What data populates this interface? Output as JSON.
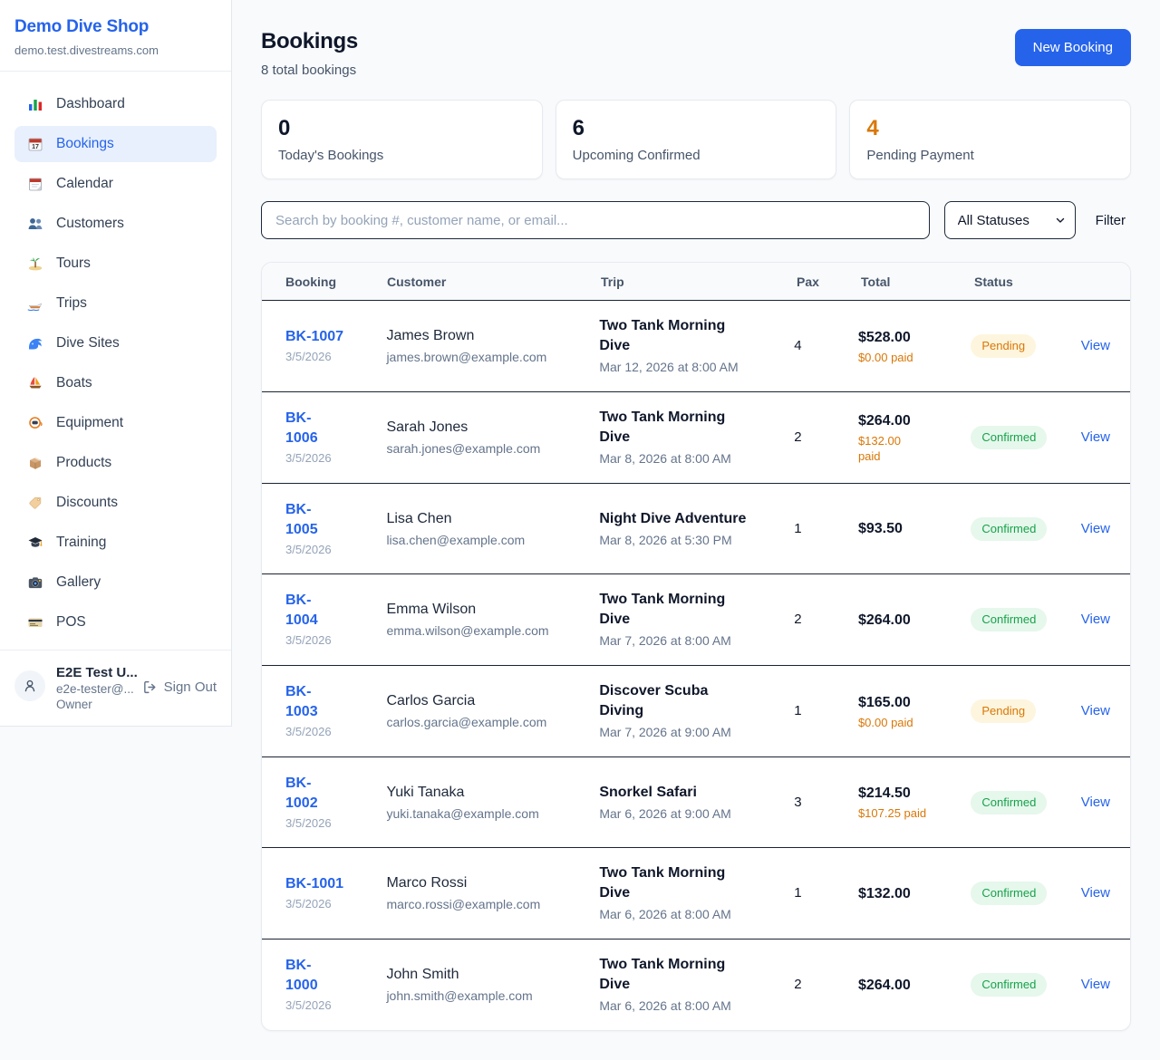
{
  "sidebar": {
    "brand": "Demo Dive Shop",
    "domain": "demo.test.divestreams.com",
    "items": [
      {
        "label": "Dashboard",
        "icon": "bar-chart-icon",
        "active": false
      },
      {
        "label": "Bookings",
        "icon": "calendar-date-icon",
        "active": true
      },
      {
        "label": "Calendar",
        "icon": "calendar-icon",
        "active": false
      },
      {
        "label": "Customers",
        "icon": "people-icon",
        "active": false
      },
      {
        "label": "Tours",
        "icon": "island-icon",
        "active": false
      },
      {
        "label": "Trips",
        "icon": "speedboat-icon",
        "active": false
      },
      {
        "label": "Dive Sites",
        "icon": "wave-icon",
        "active": false
      },
      {
        "label": "Boats",
        "icon": "sailboat-icon",
        "active": false
      },
      {
        "label": "Equipment",
        "icon": "dive-mask-icon",
        "active": false
      },
      {
        "label": "Products",
        "icon": "package-icon",
        "active": false
      },
      {
        "label": "Discounts",
        "icon": "tag-icon",
        "active": false
      },
      {
        "label": "Training",
        "icon": "grad-cap-icon",
        "active": false
      },
      {
        "label": "Gallery",
        "icon": "camera-icon",
        "active": false
      },
      {
        "label": "POS",
        "icon": "credit-card-icon",
        "active": false
      }
    ],
    "user": {
      "name": "E2E Test U...",
      "email": "e2e-tester@...",
      "role": "Owner",
      "sign_out": "Sign Out"
    }
  },
  "header": {
    "title": "Bookings",
    "subtitle": "8 total bookings",
    "new_booking_label": "New Booking"
  },
  "stats": [
    {
      "value": "0",
      "label": "Today's Bookings",
      "highlight": false
    },
    {
      "value": "6",
      "label": "Upcoming Confirmed",
      "highlight": false
    },
    {
      "value": "4",
      "label": "Pending Payment",
      "highlight": true
    }
  ],
  "filters": {
    "search_placeholder": "Search by booking #, customer name, or email...",
    "status_selected": "All Statuses",
    "filter_label": "Filter"
  },
  "table": {
    "columns": [
      "Booking",
      "Customer",
      "Trip",
      "Pax",
      "Total",
      "Status"
    ],
    "view_label": "View",
    "rows": [
      {
        "id": "BK-1007",
        "id_wrapped": false,
        "date": "3/5/2026",
        "customer_name": "James Brown",
        "customer_email": "james.brown@example.com",
        "trip_name": "Two Tank Morning Dive",
        "trip_datetime": "Mar 12, 2026 at 8:00 AM",
        "pax": "4",
        "total": "$528.00",
        "paid": "$0.00 paid",
        "paid_wrapped": false,
        "status": "Pending"
      },
      {
        "id": "BK-1006",
        "id_wrapped": true,
        "date": "3/5/2026",
        "customer_name": "Sarah Jones",
        "customer_email": "sarah.jones@example.com",
        "trip_name": "Two Tank Morning Dive",
        "trip_datetime": "Mar 8, 2026 at 8:00 AM",
        "pax": "2",
        "total": "$264.00",
        "paid": "$132.00 paid",
        "paid_wrapped": true,
        "status": "Confirmed"
      },
      {
        "id": "BK-1005",
        "id_wrapped": true,
        "date": "3/5/2026",
        "customer_name": "Lisa Chen",
        "customer_email": "lisa.chen@example.com",
        "trip_name": "Night Dive Adventure",
        "trip_datetime": "Mar 8, 2026 at 5:30 PM",
        "pax": "1",
        "total": "$93.50",
        "paid": null,
        "paid_wrapped": false,
        "status": "Confirmed"
      },
      {
        "id": "BK-1004",
        "id_wrapped": true,
        "date": "3/5/2026",
        "customer_name": "Emma Wilson",
        "customer_email": "emma.wilson@example.com",
        "trip_name": "Two Tank Morning Dive",
        "trip_datetime": "Mar 7, 2026 at 8:00 AM",
        "pax": "2",
        "total": "$264.00",
        "paid": null,
        "paid_wrapped": false,
        "status": "Confirmed"
      },
      {
        "id": "BK-1003",
        "id_wrapped": true,
        "date": "3/5/2026",
        "customer_name": "Carlos Garcia",
        "customer_email": "carlos.garcia@example.com",
        "trip_name": "Discover Scuba Diving",
        "trip_datetime": "Mar 7, 2026 at 9:00 AM",
        "pax": "1",
        "total": "$165.00",
        "paid": "$0.00 paid",
        "paid_wrapped": false,
        "status": "Pending"
      },
      {
        "id": "BK-1002",
        "id_wrapped": true,
        "date": "3/5/2026",
        "customer_name": "Yuki Tanaka",
        "customer_email": "yuki.tanaka@example.com",
        "trip_name": "Snorkel Safari",
        "trip_datetime": "Mar 6, 2026 at 9:00 AM",
        "pax": "3",
        "total": "$214.50",
        "paid": "$107.25 paid",
        "paid_wrapped": false,
        "status": "Confirmed"
      },
      {
        "id": "BK-1001",
        "id_wrapped": false,
        "date": "3/5/2026",
        "customer_name": "Marco Rossi",
        "customer_email": "marco.rossi@example.com",
        "trip_name": "Two Tank Morning Dive",
        "trip_datetime": "Mar 6, 2026 at 8:00 AM",
        "pax": "1",
        "total": "$132.00",
        "paid": null,
        "paid_wrapped": false,
        "status": "Confirmed"
      },
      {
        "id": "BK-1000",
        "id_wrapped": true,
        "date": "3/5/2026",
        "customer_name": "John Smith",
        "customer_email": "john.smith@example.com",
        "trip_name": "Two Tank Morning Dive",
        "trip_datetime": "Mar 6, 2026 at 8:00 AM",
        "pax": "2",
        "total": "$264.00",
        "paid": null,
        "paid_wrapped": false,
        "status": "Confirmed"
      }
    ]
  },
  "colors": {
    "accent": "#2563eb",
    "pending_text": "#d97706",
    "pending_bg": "#fdf5dd",
    "confirmed_text": "#16a34a",
    "confirmed_bg": "#e6f7ec",
    "page_bg": "#f8fafc"
  }
}
